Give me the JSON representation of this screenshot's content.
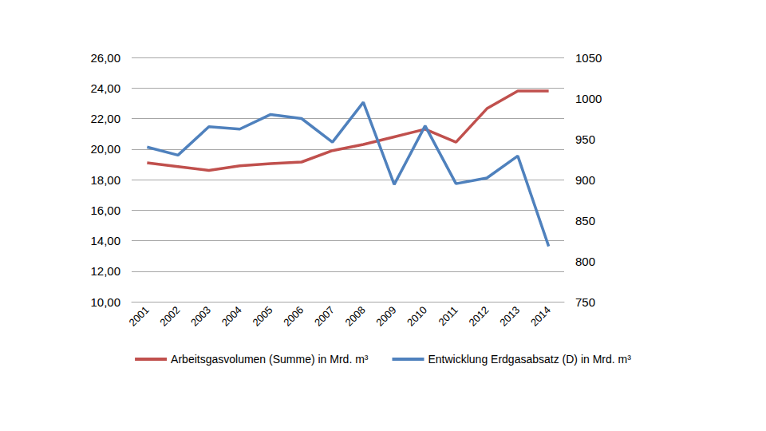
{
  "chart_data": {
    "type": "line",
    "categories": [
      "2001",
      "2002",
      "2003",
      "2004",
      "2005",
      "2006",
      "2007",
      "2008",
      "2009",
      "2010",
      "2011",
      "2012",
      "2013",
      "2014"
    ],
    "series": [
      {
        "name": "Arbeitsgasvolumen (Summe) in Mrd. m³",
        "color": "#c0504d",
        "values": [
          19.1,
          18.85,
          18.6,
          18.9,
          19.05,
          19.15,
          19.9,
          20.3,
          20.8,
          21.3,
          20.45,
          22.65,
          23.8,
          23.8
        ]
      },
      {
        "name": "Entwicklung Erdgasabsatz (D) in Mrd. m³",
        "color": "#4f81bd",
        "axis": "y2",
        "values": [
          940,
          930,
          965,
          962,
          980,
          975,
          946,
          995,
          894,
          966,
          895,
          902,
          929,
          818
        ]
      }
    ],
    "ylim": [
      10,
      26
    ],
    "yticks": [
      {
        "value": 10,
        "label": "10,00"
      },
      {
        "value": 12,
        "label": "12,00"
      },
      {
        "value": 14,
        "label": "14,00"
      },
      {
        "value": 16,
        "label": "16,00"
      },
      {
        "value": 18,
        "label": "18,00"
      },
      {
        "value": 20,
        "label": "20,00"
      },
      {
        "value": 22,
        "label": "22,00"
      },
      {
        "value": 24,
        "label": "24,00"
      },
      {
        "value": 26,
        "label": "26,00"
      }
    ],
    "y2lim": [
      750,
      1050
    ],
    "y2ticks": [
      750,
      800,
      850,
      900,
      950,
      1000,
      1050
    ],
    "grid": true,
    "legend": "bottom"
  }
}
